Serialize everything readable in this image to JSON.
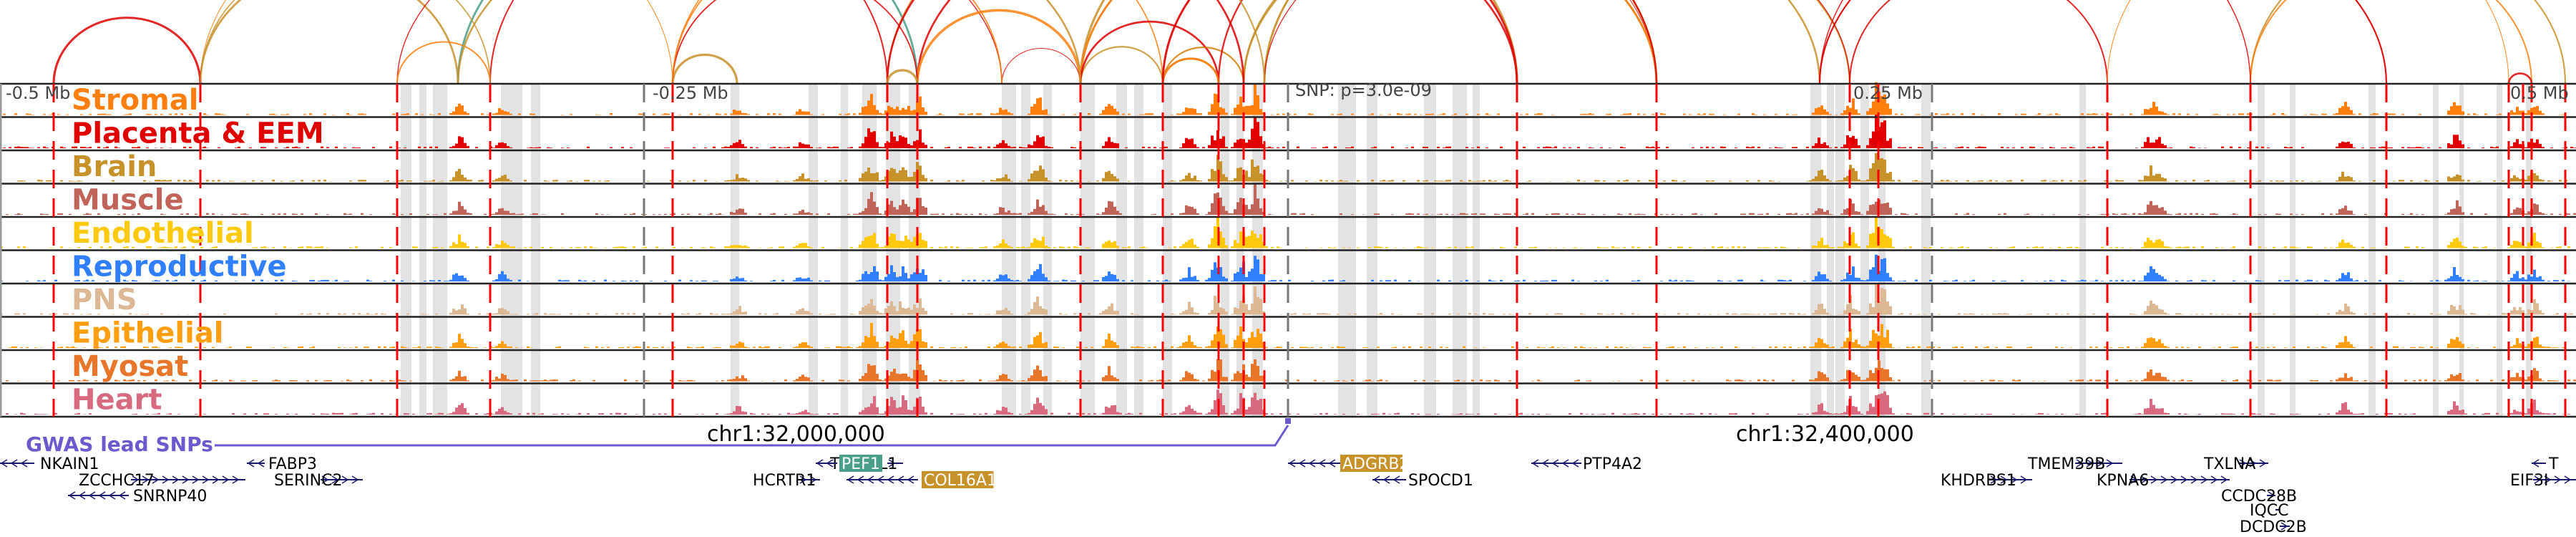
{
  "figure": {
    "type": "genome-browser-tracks",
    "region_markers": {
      "left": "-0.5 Mb",
      "left_mid": "-0.25 Mb",
      "snp": "SNP: p=3.0e-09",
      "right_mid": "0.25 Mb",
      "right": "0.5 Mb"
    },
    "coordinates": [
      {
        "label": "chr1:32,000,000",
        "position_bp": 32000000
      },
      {
        "label": "chr1:32,400,000",
        "position_bp": 32400000
      }
    ],
    "gwas": {
      "label": "GWAS lead SNPs",
      "color": "#6a5acd"
    }
  },
  "tracks": [
    {
      "name": "Stromal",
      "color": "#ff7f0e"
    },
    {
      "name": "Placenta & EEM",
      "color": "#e00000"
    },
    {
      "name": "Brain",
      "color": "#c8922b"
    },
    {
      "name": "Muscle",
      "color": "#c0645a"
    },
    {
      "name": "Endothelial",
      "color": "#ffc90e"
    },
    {
      "name": "Reproductive",
      "color": "#2f7fff"
    },
    {
      "name": "PNS",
      "color": "#ddb894"
    },
    {
      "name": "Epithelial",
      "color": "#ff9f10"
    },
    {
      "name": "Myosat",
      "color": "#e8762a"
    },
    {
      "name": "Heart",
      "color": "#d86a80"
    }
  ],
  "genes": [
    {
      "name": "NKAIN1",
      "strand": "-",
      "row": 0,
      "highlight": null
    },
    {
      "name": "ZCCHC17",
      "strand": "+",
      "row": 1,
      "highlight": null
    },
    {
      "name": "SNRNP40",
      "strand": "-",
      "row": 2,
      "highlight": null
    },
    {
      "name": "FABP3",
      "strand": "-",
      "row": 0,
      "highlight": null
    },
    {
      "name": "SERINC2",
      "strand": "+",
      "row": 1,
      "highlight": null
    },
    {
      "name": "TINAGL1",
      "strand": "+",
      "row": 0,
      "highlight": null
    },
    {
      "name": "HCRTR1",
      "strand": "+",
      "row": 1,
      "highlight": null
    },
    {
      "name": "PEF1",
      "strand": "-",
      "row": 0,
      "highlight": "#4a9e8a"
    },
    {
      "name": "COL16A1",
      "strand": "-",
      "row": 1,
      "highlight": "#c8922b"
    },
    {
      "name": "ADGRB2",
      "strand": "-",
      "row": 0,
      "highlight": "#c8922b"
    },
    {
      "name": "SPOCD1",
      "strand": "-",
      "row": 1,
      "highlight": null
    },
    {
      "name": "PTP4A2",
      "strand": "-",
      "row": 0,
      "highlight": null
    },
    {
      "name": "KHDRBS1",
      "strand": "+",
      "row": 1,
      "highlight": null
    },
    {
      "name": "TMEM39B",
      "strand": "+",
      "row": 0,
      "highlight": null
    },
    {
      "name": "KPNA6",
      "strand": "+",
      "row": 1,
      "highlight": null
    },
    {
      "name": "TXLNA",
      "strand": "+",
      "row": 0,
      "highlight": null
    },
    {
      "name": "CCDC28B",
      "strand": "+",
      "row": 2,
      "highlight": null
    },
    {
      "name": "IQCC",
      "strand": "+",
      "row": 3,
      "highlight": null
    },
    {
      "name": "DCDC2B",
      "strand": "+",
      "row": 4,
      "highlight": null
    },
    {
      "name": "EIF3I",
      "strand": "+",
      "row": 1,
      "highlight": null
    },
    {
      "name": "T",
      "strand": "-",
      "row": 0,
      "highlight": null
    }
  ],
  "colors": {
    "loop_palette": [
      "#e00000",
      "#ff7f0e",
      "#c8922b",
      "#4a9e8a"
    ],
    "peak_shading": "#e3e3e3",
    "gene_model": "#1a1a6e",
    "dashed_boundary": "#ff0000",
    "center_marker": "#777777"
  }
}
